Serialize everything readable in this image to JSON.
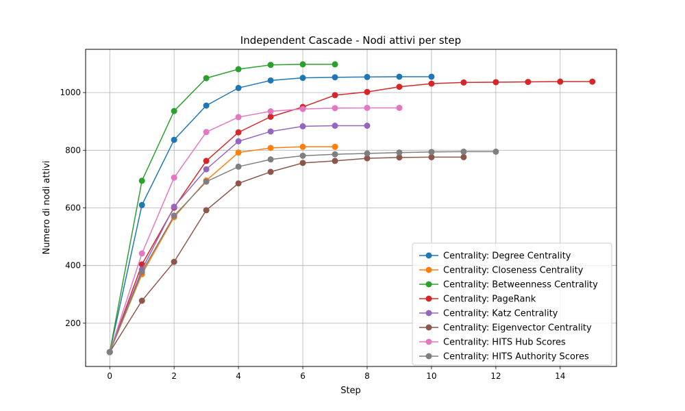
{
  "chart_data": {
    "type": "line",
    "title": "Independent Cascade - Nodi attivi per step",
    "xlabel": "Step",
    "ylabel": "Numero di nodi attivi",
    "xlim": [
      -0.75,
      15.75
    ],
    "ylim": [
      50,
      1150
    ],
    "xticks": [
      0,
      2,
      4,
      6,
      8,
      10,
      12,
      14
    ],
    "yticks": [
      200,
      400,
      600,
      800,
      1000
    ],
    "grid": true,
    "legend_position": "bottom-right",
    "series": [
      {
        "name": "Centrality: Degree Centrality",
        "color": "#1f77b4",
        "x": [
          0,
          1,
          2,
          3,
          4,
          5,
          6,
          7,
          8,
          9,
          10
        ],
        "y": [
          100,
          610,
          836,
          955,
          1016,
          1042,
          1051,
          1053,
          1054,
          1055,
          1055
        ]
      },
      {
        "name": "Centrality: Closeness Centrality",
        "color": "#ff7f0e",
        "x": [
          0,
          1,
          2,
          3,
          4,
          5,
          6,
          7
        ],
        "y": [
          100,
          370,
          568,
          695,
          792,
          808,
          812,
          812
        ]
      },
      {
        "name": "Centrality: Betweenness Centrality",
        "color": "#2ca02c",
        "x": [
          0,
          1,
          2,
          3,
          4,
          5,
          6,
          7
        ],
        "y": [
          100,
          694,
          936,
          1050,
          1081,
          1096,
          1098,
          1098
        ]
      },
      {
        "name": "Centrality: PageRank",
        "color": "#d62728",
        "x": [
          0,
          1,
          2,
          3,
          4,
          5,
          6,
          7,
          8,
          9,
          10,
          11,
          12,
          13,
          14,
          15
        ],
        "y": [
          100,
          404,
          601,
          763,
          862,
          916,
          950,
          991,
          1002,
          1020,
          1031,
          1035,
          1036,
          1037,
          1038,
          1038
        ]
      },
      {
        "name": "Centrality: Katz Centrality",
        "color": "#9467bd",
        "x": [
          0,
          1,
          2,
          3,
          4,
          5,
          6,
          7,
          8
        ],
        "y": [
          100,
          386,
          604,
          734,
          831,
          865,
          883,
          885,
          885
        ]
      },
      {
        "name": "Centrality: Eigenvector Centrality",
        "color": "#8c564b",
        "x": [
          0,
          1,
          2,
          3,
          4,
          5,
          6,
          7,
          8,
          9,
          10,
          11
        ],
        "y": [
          100,
          278,
          413,
          592,
          685,
          725,
          756,
          763,
          772,
          775,
          776,
          776
        ]
      },
      {
        "name": "Centrality: HITS Hub Scores",
        "color": "#e377c2",
        "x": [
          0,
          1,
          2,
          3,
          4,
          5,
          6,
          7,
          8,
          9
        ],
        "y": [
          100,
          442,
          705,
          863,
          915,
          935,
          943,
          946,
          947,
          947
        ]
      },
      {
        "name": "Centrality: HITS Authority Scores",
        "color": "#7f7f7f",
        "x": [
          0,
          1,
          2,
          3,
          4,
          5,
          6,
          7,
          8,
          9,
          10,
          11,
          12
        ],
        "y": [
          100,
          378,
          573,
          691,
          743,
          768,
          781,
          786,
          789,
          792,
          794,
          795,
          795
        ]
      }
    ]
  }
}
